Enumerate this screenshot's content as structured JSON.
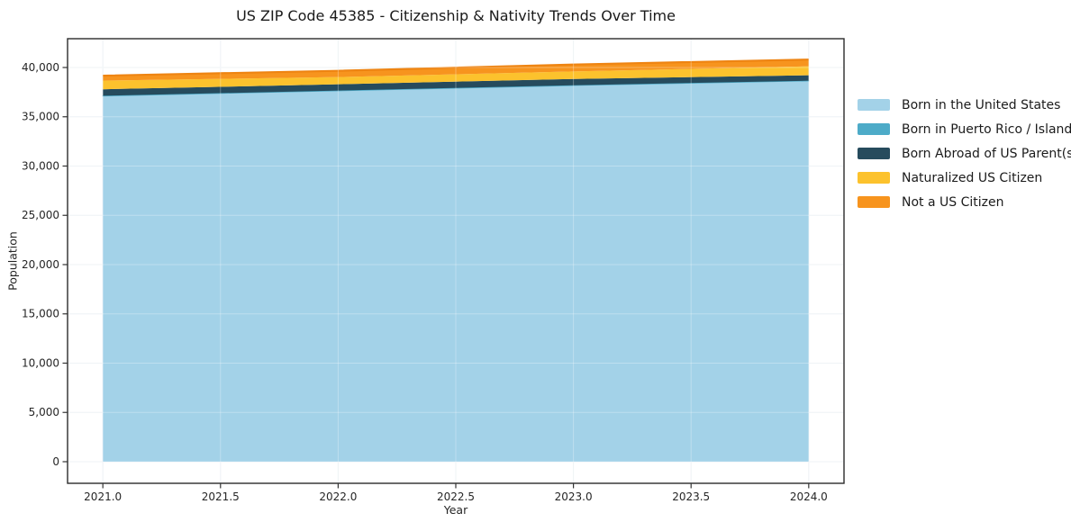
{
  "title": "US ZIP Code 45385 - Citizenship & Nativity Trends Over Time",
  "chart_data": {
    "type": "area",
    "stacked": true,
    "title": "US ZIP Code 45385 - Citizenship & Nativity Trends Over Time",
    "xlabel": "Year",
    "ylabel": "Population",
    "x": [
      2021,
      2022,
      2023,
      2024
    ],
    "series": [
      {
        "name": "Born in the United States",
        "color": "#a3d2e8",
        "values": [
          37100,
          37630,
          38170,
          38630
        ]
      },
      {
        "name": "Born in Puerto Rico / Islands",
        "color": "#4dabc8",
        "values": [
          30,
          30,
          30,
          30
        ]
      },
      {
        "name": "Born Abroad of US Parent(s)",
        "color": "#264b5d",
        "values": [
          660,
          635,
          640,
          550
        ]
      },
      {
        "name": "Naturalized US Citizen",
        "color": "#fcc22d",
        "values": [
          880,
          730,
          760,
          910
        ]
      },
      {
        "name": "Not a US Citizen",
        "color": "#f7941e",
        "edge_color": "#ee8412",
        "values": [
          500,
          640,
          700,
          685
        ]
      }
    ],
    "xlim": [
      2020.85,
      2024.15
    ],
    "ylim": [
      -2192,
      42922
    ],
    "xticks": [
      2021.0,
      2021.5,
      2022.0,
      2022.5,
      2023.0,
      2023.5,
      2024.0
    ],
    "xtick_labels": [
      "2021.0",
      "2021.5",
      "2022.0",
      "2022.5",
      "2023.0",
      "2023.5",
      "2024.0"
    ],
    "yticks": [
      0,
      5000,
      10000,
      15000,
      20000,
      25000,
      30000,
      35000,
      40000
    ],
    "ytick_labels": [
      "0",
      "5,000",
      "10,000",
      "15,000",
      "20,000",
      "25,000",
      "30,000",
      "35,000",
      "40,000"
    ],
    "grid": true,
    "grid_color": "#e9eef3",
    "spine_color": "#2b2b2b",
    "tick_color": "#333333",
    "tick_label_color": "#262626",
    "legend_position": "right-outside"
  }
}
